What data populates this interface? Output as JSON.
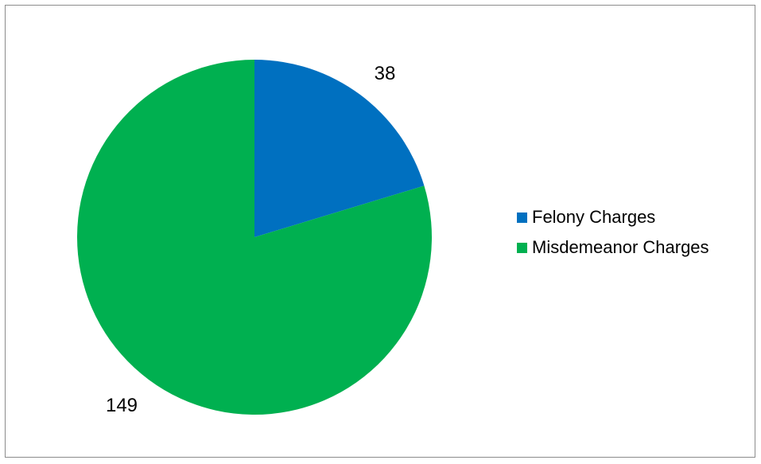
{
  "chart_data": {
    "type": "pie",
    "title": "",
    "categories": [
      "Felony Charges",
      "Misdemeanor Charges"
    ],
    "values": [
      38,
      149
    ],
    "colors": [
      "#0070C0",
      "#00B050"
    ],
    "data_labels": [
      "38",
      "149"
    ],
    "legend": {
      "placement": "right",
      "items": [
        {
          "label": "Felony Charges",
          "color": "#0070C0"
        },
        {
          "label": "Misdemeanor Charges",
          "color": "#00B050"
        }
      ]
    },
    "start_angle": "12 o'clock",
    "direction": "clockwise"
  }
}
